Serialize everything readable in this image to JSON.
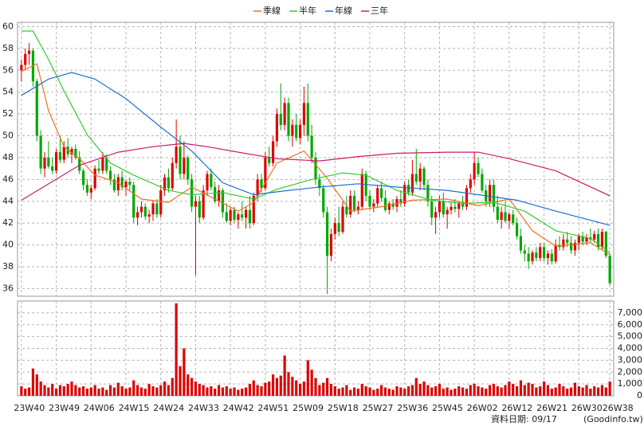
{
  "chart_data": {
    "type": "candlestick",
    "legend": "top",
    "up_color": "#e00000",
    "down_color": "#00a800",
    "xlim": [
      -1,
      153
    ],
    "xticks": [
      {
        "value": 0,
        "label": "23W40"
      },
      {
        "value": 9,
        "label": "23W49"
      },
      {
        "value": 18,
        "label": "24W06"
      },
      {
        "value": 27,
        "label": "24W15"
      },
      {
        "value": 36,
        "label": "24W24"
      },
      {
        "value": 45,
        "label": "24W33"
      },
      {
        "value": 54,
        "label": "24W42"
      },
      {
        "value": 63,
        "label": "24W51"
      },
      {
        "value": 72,
        "label": "25W09"
      },
      {
        "value": 81,
        "label": "25W18"
      },
      {
        "value": 90,
        "label": "25W27"
      },
      {
        "value": 99,
        "label": "25W36"
      },
      {
        "value": 108,
        "label": "25W45"
      },
      {
        "value": 117,
        "label": "26W02"
      },
      {
        "value": 126,
        "label": "26W12"
      },
      {
        "value": 135,
        "label": "26W21"
      },
      {
        "value": 144,
        "label": "26W30"
      },
      {
        "value": 152,
        "label": "26W38"
      }
    ],
    "ylim": [
      35.3,
      60.4
    ],
    "yticks": [
      36,
      38,
      40,
      42,
      44,
      46,
      48,
      50,
      52,
      54,
      56,
      58,
      60
    ],
    "grid": true,
    "ohlc": [
      [
        56,
        57,
        55,
        56.5
      ],
      [
        56.5,
        58,
        56,
        57.5
      ],
      [
        57.5,
        58.5,
        56.5,
        57.8
      ],
      [
        57.8,
        58,
        54.5,
        55
      ],
      [
        55,
        55.2,
        49.5,
        50
      ],
      [
        50,
        50.5,
        46.5,
        47
      ],
      [
        47,
        48.5,
        46.2,
        48
      ],
      [
        48,
        49.5,
        47,
        47.2
      ],
      [
        47.2,
        48,
        46.5,
        46.8
      ],
      [
        46.8,
        48.8,
        46.5,
        48.5
      ],
      [
        48.5,
        50,
        47.5,
        47.8
      ],
      [
        47.8,
        49.5,
        47.5,
        49
      ],
      [
        49,
        49.8,
        48,
        48.3
      ],
      [
        48.3,
        49,
        47.5,
        48.8
      ],
      [
        48.8,
        49.2,
        47.8,
        48
      ],
      [
        48,
        48.6,
        46.5,
        46.8
      ],
      [
        46.8,
        47,
        45,
        45.5
      ],
      [
        45.5,
        46,
        44.5,
        44.8
      ],
      [
        44.8,
        45.5,
        44.2,
        45.2
      ],
      [
        45.2,
        47.3,
        45,
        47
      ],
      [
        47,
        47.8,
        46.5,
        46.8
      ],
      [
        46.8,
        48.5,
        46.5,
        48
      ],
      [
        48,
        48.3,
        46.5,
        46.8
      ],
      [
        46.8,
        47.2,
        45.5,
        46
      ],
      [
        46,
        46.5,
        44.8,
        45
      ],
      [
        45,
        46.5,
        44.5,
        46.2
      ],
      [
        46.2,
        46.8,
        45,
        45.3
      ],
      [
        45.3,
        46,
        44.5,
        45.8
      ],
      [
        45.8,
        46.2,
        45,
        45.5
      ],
      [
        45.5,
        45.8,
        42,
        42.5
      ],
      [
        42.5,
        43.5,
        41.8,
        43
      ],
      [
        43,
        44,
        42.5,
        43.5
      ],
      [
        43.5,
        43.8,
        42.3,
        42.6
      ],
      [
        42.6,
        43.2,
        42,
        42.8
      ],
      [
        42.8,
        44,
        42.2,
        43.8
      ],
      [
        43.8,
        44.2,
        42.5,
        42.8
      ],
      [
        42.8,
        45.5,
        42.5,
        45
      ],
      [
        45,
        46.5,
        44.5,
        46.2
      ],
      [
        46.2,
        47,
        44.8,
        45.2
      ],
      [
        45.2,
        48,
        45,
        47.5
      ],
      [
        47.5,
        51.5,
        47,
        49
      ],
      [
        49,
        50,
        46,
        46.5
      ],
      [
        46.5,
        49.5,
        46,
        48
      ],
      [
        48,
        48.2,
        45.5,
        46
      ],
      [
        46,
        46.5,
        43,
        43.5
      ],
      [
        43.5,
        44.5,
        37.2,
        44
      ],
      [
        44,
        44.5,
        42,
        42.5
      ],
      [
        42.5,
        45.5,
        42.3,
        45
      ],
      [
        45,
        46.8,
        44.5,
        46.5
      ],
      [
        46.5,
        47,
        45,
        45.3
      ],
      [
        45.3,
        45.8,
        43.8,
        44
      ],
      [
        44,
        45.5,
        43.5,
        45
      ],
      [
        45,
        45.2,
        42.5,
        43
      ],
      [
        43,
        43.8,
        42,
        42.2
      ],
      [
        42.2,
        43.5,
        41.8,
        43.2
      ],
      [
        43.2,
        43.5,
        42,
        42.3
      ],
      [
        42.3,
        43,
        41.5,
        42.8
      ],
      [
        42.8,
        44,
        42.2,
        42.5
      ],
      [
        42.5,
        43.5,
        41.5,
        43.2
      ],
      [
        43.2,
        44.5,
        41.5,
        42
      ],
      [
        42,
        44.8,
        41.8,
        44.5
      ],
      [
        44.5,
        46.5,
        44,
        46
      ],
      [
        46,
        46.5,
        44.8,
        45.2
      ],
      [
        45.2,
        48.5,
        45,
        48
      ],
      [
        48,
        49,
        47.2,
        47.5
      ],
      [
        47.5,
        50,
        47.2,
        49.5
      ],
      [
        49.5,
        52.5,
        49,
        52
      ],
      [
        52,
        54.8,
        50.5,
        51
      ],
      [
        51,
        53.5,
        50.5,
        53
      ],
      [
        53,
        53.5,
        49.5,
        50
      ],
      [
        50,
        51.5,
        49,
        51
      ],
      [
        51,
        52,
        49.5,
        49.8
      ],
      [
        49.8,
        51.5,
        49.2,
        51
      ],
      [
        51,
        54.5,
        50,
        53
      ],
      [
        53,
        54.8,
        49.5,
        50
      ],
      [
        50,
        51,
        47.5,
        48
      ],
      [
        48,
        48.5,
        45.5,
        46
      ],
      [
        46,
        46.5,
        44.5,
        45.2
      ],
      [
        45.2,
        45.5,
        42.5,
        43
      ],
      [
        43,
        43.5,
        35.5,
        39
      ],
      [
        39,
        41.5,
        38.5,
        41
      ],
      [
        41,
        42.5,
        40.5,
        42
      ],
      [
        42,
        43.5,
        40.8,
        41.2
      ],
      [
        41.2,
        44,
        41,
        43.5
      ],
      [
        43.5,
        44.5,
        42.5,
        42.8
      ],
      [
        42.8,
        45,
        42.5,
        44.5
      ],
      [
        44.5,
        45,
        43,
        43.2
      ],
      [
        43.2,
        44,
        42.8,
        43.5
      ],
      [
        43.5,
        47,
        43.2,
        46.5
      ],
      [
        46.5,
        46.8,
        44,
        44.5
      ],
      [
        44.5,
        45,
        43.2,
        43.5
      ],
      [
        43.5,
        44.2,
        43,
        43.8
      ],
      [
        43.8,
        45.5,
        43.5,
        45.2
      ],
      [
        45.2,
        45.8,
        44,
        44.3
      ],
      [
        44.3,
        45,
        43,
        43.2
      ],
      [
        43.2,
        44,
        42.8,
        43.8
      ],
      [
        43.8,
        44.2,
        43.2,
        43.5
      ],
      [
        43.5,
        44.5,
        43,
        44.2
      ],
      [
        44.2,
        45,
        43.5,
        43.8
      ],
      [
        43.8,
        45.8,
        43.5,
        45.5
      ],
      [
        45.5,
        46,
        44.5,
        44.8
      ],
      [
        44.8,
        47.8,
        44.5,
        46.5
      ],
      [
        46.5,
        48.8,
        45.5,
        45.8
      ],
      [
        45.8,
        47.5,
        45,
        47
      ],
      [
        47,
        47.2,
        45,
        45.5
      ],
      [
        45.5,
        46,
        43.5,
        44
      ],
      [
        44,
        44.5,
        41.8,
        42.5
      ],
      [
        42.5,
        43.5,
        41,
        43
      ],
      [
        43,
        44.5,
        42.5,
        44
      ],
      [
        44,
        44.8,
        42.5,
        42.8
      ],
      [
        42.8,
        43.5,
        41.5,
        43.2
      ],
      [
        43.2,
        44,
        42.8,
        43.5
      ],
      [
        43.5,
        44.2,
        43,
        43.3
      ],
      [
        43.3,
        44,
        42.5,
        43.8
      ],
      [
        43.8,
        44.5,
        43.2,
        43.5
      ],
      [
        43.5,
        45.5,
        43.2,
        45.2
      ],
      [
        45.2,
        46.5,
        44.8,
        46
      ],
      [
        46,
        48.5,
        45.5,
        47.5
      ],
      [
        47.5,
        48,
        46.2,
        46.5
      ],
      [
        46.5,
        47,
        44.8,
        45
      ],
      [
        45,
        45.5,
        43.5,
        44
      ],
      [
        44,
        46,
        43.5,
        45.5
      ],
      [
        45.5,
        46,
        43,
        43.5
      ],
      [
        43.5,
        44.5,
        42,
        42.3
      ],
      [
        42.3,
        43.5,
        41.5,
        43
      ],
      [
        43,
        44,
        42,
        42.2
      ],
      [
        42.2,
        43,
        41.5,
        42.8
      ],
      [
        42.8,
        43.2,
        41.8,
        42
      ],
      [
        42,
        42.5,
        40.5,
        40.8
      ],
      [
        40.8,
        41.5,
        39.2,
        39.5
      ],
      [
        39.5,
        40,
        38.5,
        39.2
      ],
      [
        39.2,
        39.8,
        37.8,
        38.5
      ],
      [
        38.5,
        39.5,
        38.2,
        39.3
      ],
      [
        39.3,
        39.8,
        38.5,
        38.8
      ],
      [
        38.8,
        40.2,
        38.5,
        39.8
      ],
      [
        39.8,
        40.2,
        38.5,
        38.8
      ],
      [
        38.8,
        39.5,
        38.2,
        39.2
      ],
      [
        39.2,
        39.6,
        38.2,
        38.5
      ],
      [
        38.5,
        40.5,
        38.3,
        40
      ],
      [
        40,
        40.8,
        39.5,
        39.8
      ],
      [
        39.8,
        41,
        39.5,
        40.5
      ],
      [
        40.5,
        41.2,
        39.8,
        40.2
      ],
      [
        40.2,
        40.8,
        39.2,
        39.5
      ],
      [
        39.5,
        40.5,
        39,
        40.2
      ],
      [
        40.2,
        41,
        39.5,
        40.8
      ],
      [
        40.8,
        41.2,
        40,
        40.3
      ],
      [
        40.3,
        41,
        40,
        40.7
      ],
      [
        40.7,
        41.5,
        40.2,
        40.5
      ],
      [
        40.5,
        41.3,
        40.2,
        41
      ],
      [
        41,
        41.5,
        39.5,
        39.8
      ],
      [
        39.8,
        41.5,
        39.5,
        41.2
      ],
      [
        41.2,
        41.3,
        38.8,
        39
      ],
      [
        39,
        39.2,
        36.3,
        36.5
      ]
    ],
    "series": [
      {
        "name": "季線",
        "color": "#f07020",
        "x": [
          0,
          4,
          7,
          11,
          15,
          19,
          25,
          31,
          38,
          44,
          50,
          56,
          60,
          66,
          73,
          79,
          85,
          93,
          101,
          110,
          118,
          126,
          132,
          138,
          147,
          152
        ],
        "values": [
          55.9,
          56.6,
          52.3,
          49,
          47.9,
          46.4,
          45.7,
          44.2,
          43.9,
          45.3,
          44.2,
          43.1,
          43.9,
          47.5,
          48.6,
          46.1,
          43.1,
          43.5,
          44.1,
          44.2,
          43.6,
          44.2,
          41.3,
          39.9,
          40.2,
          39.1
        ]
      },
      {
        "name": "半年",
        "color": "#33cc33",
        "x": [
          0,
          3,
          7,
          11,
          17,
          23,
          29,
          38,
          44,
          52,
          60,
          66,
          75,
          83,
          89,
          97,
          106,
          114,
          122,
          130,
          138,
          147,
          152
        ],
        "values": [
          59.6,
          59.6,
          57,
          54.1,
          50.1,
          47.5,
          46.4,
          45,
          44.6,
          44.8,
          44.2,
          45.1,
          46,
          46.6,
          46.4,
          45,
          44.1,
          43.8,
          43.9,
          43.1,
          41.3,
          40.6,
          39.3
        ]
      },
      {
        "name": "年線",
        "color": "#1f6fd0",
        "x": [
          0,
          7,
          13,
          19,
          27,
          36,
          44,
          52,
          60,
          69,
          77,
          87,
          97,
          110,
          118,
          128,
          138,
          152
        ],
        "values": [
          53.7,
          55.2,
          55.8,
          55.2,
          53.4,
          50.8,
          48.6,
          45.7,
          44.6,
          45,
          45.3,
          45.6,
          45.3,
          45,
          44.6,
          44.1,
          43.1,
          41.8
        ]
      },
      {
        "name": "三年",
        "color": "#d0186a",
        "x": [
          0,
          15,
          25,
          34,
          42,
          48,
          56,
          66,
          77,
          87,
          97,
          110,
          118,
          126,
          138,
          152
        ],
        "values": [
          44.1,
          47.3,
          48.5,
          49,
          49.3,
          49,
          48.5,
          47.9,
          47.7,
          48.1,
          48.4,
          48.5,
          48.5,
          47.9,
          46.8,
          44.5
        ]
      }
    ],
    "volume": {
      "color": "#dd0000",
      "ylim": [
        0,
        8000
      ],
      "yticks": [
        0,
        {
          "value": 1000,
          "label": "1,000"
        },
        {
          "value": 2000,
          "label": "2,000"
        },
        {
          "value": 3000,
          "label": "3,000"
        },
        {
          "value": 4000,
          "label": "4,000"
        },
        {
          "value": 5000,
          "label": "5,000"
        },
        {
          "value": 6000,
          "label": "6,000"
        },
        {
          "value": 7000,
          "label": "7,000"
        }
      ],
      "values": [
        800,
        600,
        700,
        2300,
        1800,
        1200,
        900,
        700,
        1000,
        600,
        900,
        800,
        1000,
        1200,
        900,
        700,
        800,
        600,
        700,
        900,
        600,
        700,
        500,
        900,
        700,
        1100,
        800,
        600,
        700,
        1300,
        900,
        700,
        600,
        1000,
        800,
        700,
        900,
        1200,
        900,
        1500,
        7800,
        2500,
        4000,
        1800,
        1500,
        1200,
        1000,
        900,
        700,
        800,
        600,
        900,
        700,
        800,
        600,
        700,
        500,
        600,
        700,
        1000,
        1300,
        900,
        800,
        1100,
        1200,
        1800,
        1500,
        1700,
        3400,
        2000,
        1600,
        1300,
        1000,
        1200,
        3000,
        2200,
        1500,
        900,
        1100,
        1500,
        1000,
        800,
        600,
        700,
        900,
        500,
        700,
        600,
        1000,
        800,
        700,
        500,
        600,
        900,
        700,
        600,
        500,
        800,
        700,
        600,
        800,
        900,
        1500,
        1000,
        1200,
        900,
        700,
        800,
        1000,
        600,
        700,
        500,
        600,
        800,
        700,
        600,
        900,
        1000,
        800,
        700,
        600,
        900,
        1000,
        800,
        700,
        900,
        1200,
        1000,
        800,
        1300,
        900,
        1100,
        1000,
        700,
        800,
        1200,
        900,
        600,
        700,
        1000,
        800,
        600,
        700,
        1100,
        800,
        700,
        900,
        600,
        800,
        700,
        900,
        700,
        1200
      ]
    },
    "footer": {
      "date": "資料日期: 09/17",
      "source": "(Goodinfo.tw)"
    }
  }
}
